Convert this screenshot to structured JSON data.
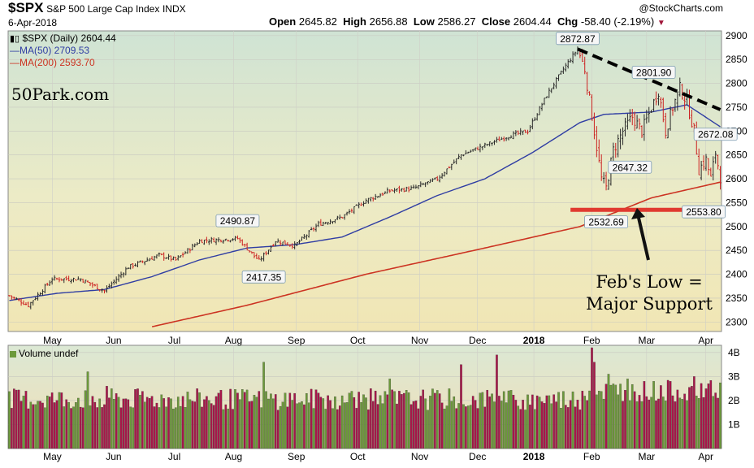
{
  "header": {
    "symbol": "$SPX",
    "name": "S&P 500 Large Cap Index",
    "exchange": "INDX",
    "brand": "@StockCharts.com",
    "date": "6-Apr-2018",
    "open_label": "Open",
    "open": "2645.82",
    "high_label": "High",
    "high": "2656.88",
    "low_label": "Low",
    "low": "2586.27",
    "close_label": "Close",
    "close": "2604.44",
    "chg_label": "Chg",
    "chg": "-58.40 (-2.19%)",
    "chg_icon": "down-triangle-icon"
  },
  "legend": {
    "price": "$SPX (Daily) 2604.44",
    "ma50": "MA(50) 2709.53",
    "ma200": "MA(200) 2593.70",
    "volume": "Volume undef"
  },
  "watermark": "50Park.com",
  "annotation": {
    "line1": "Feb's Low =",
    "line2": "Major Support"
  },
  "colors": {
    "up": "#2a2a2a",
    "down": "#cc2222",
    "ma50": "#2f3da3",
    "ma200": "#cc3322",
    "vol_up": "#6c9a3a",
    "vol_down": "#a8164a",
    "support": "#e03a30",
    "trend": "#000000"
  },
  "chart_data": [
    {
      "type": "line",
      "title": "$SPX (Daily) 2604.44",
      "ylim": [
        2280,
        2910
      ],
      "yticks": [
        2300,
        2350,
        2400,
        2450,
        2500,
        2550,
        2600,
        2650,
        2700,
        2750,
        2800,
        2850,
        2900
      ],
      "x_ticks": [
        "May",
        "Jun",
        "Jul",
        "Aug",
        "Sep",
        "Oct",
        "Nov",
        "Dec",
        "2018",
        "Feb",
        "Mar",
        "Apr"
      ],
      "price_anchors": [
        [
          0,
          2355
        ],
        [
          8,
          2335
        ],
        [
          18,
          2390
        ],
        [
          30,
          2390
        ],
        [
          40,
          2365
        ],
        [
          50,
          2415
        ],
        [
          63,
          2440
        ],
        [
          70,
          2430
        ],
        [
          80,
          2470
        ],
        [
          96,
          2475
        ],
        [
          105,
          2428
        ],
        [
          112,
          2470
        ],
        [
          120,
          2460
        ],
        [
          130,
          2505
        ],
        [
          140,
          2520
        ],
        [
          150,
          2555
        ],
        [
          160,
          2575
        ],
        [
          170,
          2580
        ],
        [
          180,
          2600
        ],
        [
          190,
          2650
        ],
        [
          200,
          2670
        ],
        [
          210,
          2690
        ],
        [
          218,
          2700
        ],
        [
          226,
          2775
        ],
        [
          233,
          2830
        ],
        [
          239,
          2872
        ],
        [
          242,
          2830
        ],
        [
          246,
          2700
        ],
        [
          249,
          2600
        ],
        [
          251,
          2580
        ],
        [
          254,
          2660
        ],
        [
          258,
          2700
        ],
        [
          262,
          2730
        ],
        [
          266,
          2700
        ],
        [
          270,
          2748
        ],
        [
          273,
          2785
        ],
        [
          276,
          2700
        ],
        [
          279,
          2750
        ],
        [
          282,
          2790
        ],
        [
          285,
          2760
        ],
        [
          288,
          2700
        ],
        [
          290,
          2620
        ],
        [
          293,
          2640
        ],
        [
          295,
          2600
        ],
        [
          297,
          2655
        ],
        [
          299,
          2604
        ]
      ],
      "ma50_anchors": [
        [
          0,
          2345
        ],
        [
          20,
          2360
        ],
        [
          40,
          2368
        ],
        [
          60,
          2395
        ],
        [
          80,
          2430
        ],
        [
          100,
          2455
        ],
        [
          120,
          2462
        ],
        [
          140,
          2478
        ],
        [
          160,
          2520
        ],
        [
          180,
          2565
        ],
        [
          200,
          2600
        ],
        [
          220,
          2655
        ],
        [
          240,
          2718
        ],
        [
          250,
          2735
        ],
        [
          270,
          2740
        ],
        [
          285,
          2755
        ],
        [
          299,
          2709
        ]
      ],
      "ma200_anchors": [
        [
          60,
          2290
        ],
        [
          100,
          2335
        ],
        [
          150,
          2400
        ],
        [
          200,
          2455
        ],
        [
          240,
          2500
        ],
        [
          270,
          2560
        ],
        [
          299,
          2593
        ]
      ],
      "trendline": [
        [
          239,
          2872
        ],
        [
          299,
          2745
        ]
      ],
      "support_level": 2535,
      "price_labels": [
        {
          "text": "2490.87",
          "bar": 96,
          "value": 2490.87
        },
        {
          "text": "2417.35",
          "bar": 107,
          "value": 2417.35
        },
        {
          "text": "2872.87",
          "bar": 239,
          "value": 2872.87
        },
        {
          "text": "2801.90",
          "bar": 271,
          "value": 2801.9
        },
        {
          "text": "2532.69",
          "bar": 251,
          "value": 2532.69
        },
        {
          "text": "2647.32",
          "bar": 261,
          "value": 2647.32
        },
        {
          "text": "2672.08",
          "bar": 297,
          "value": 2672.08
        },
        {
          "text": "2553.80",
          "bar": 292,
          "value": 2553.8
        }
      ]
    },
    {
      "type": "bar",
      "title": "Volume undef",
      "ylim": [
        0,
        4.3
      ],
      "yticks": [
        "1B",
        "2B",
        "3B",
        "4B"
      ],
      "volume_seed": 7,
      "volume_spikes": [
        [
          33,
          3.2
        ],
        [
          41,
          2.6
        ],
        [
          107,
          3.6
        ],
        [
          140,
          2.2
        ],
        [
          160,
          2.9
        ],
        [
          190,
          3.5
        ],
        [
          205,
          3.9
        ],
        [
          222,
          2.2
        ],
        [
          245,
          4.2
        ],
        [
          246,
          3.6
        ],
        [
          252,
          3.1
        ],
        [
          260,
          2.9
        ],
        [
          288,
          3.0
        ],
        [
          294,
          2.7
        ]
      ]
    }
  ]
}
